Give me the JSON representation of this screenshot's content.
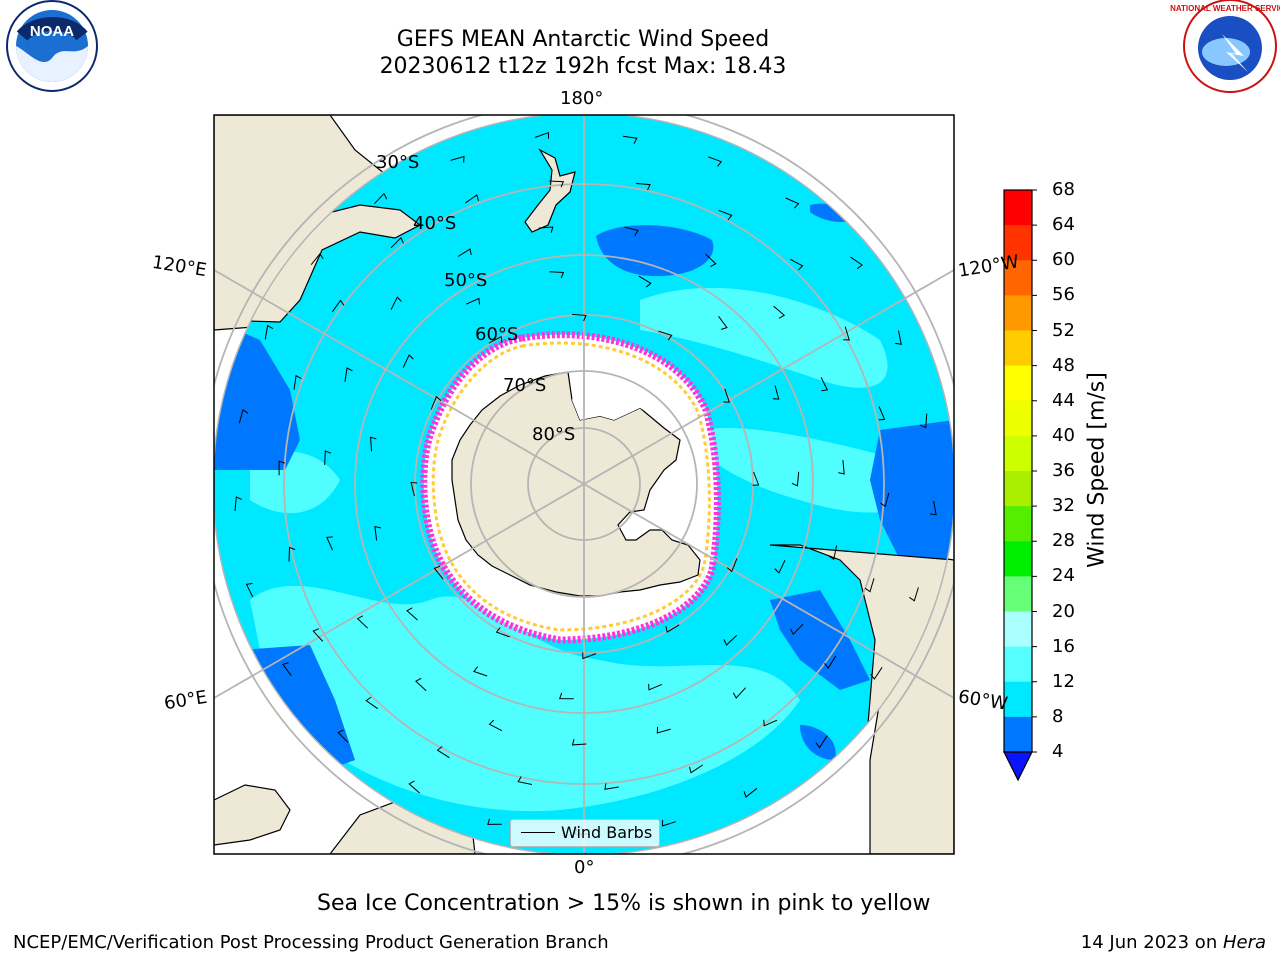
{
  "title": {
    "line1": "GEFS MEAN Antarctic Wind Speed",
    "line2": "20230612 t12z 192h fcst   Max: 18.43"
  },
  "logos": {
    "left": {
      "name": "noaa-logo",
      "text": "NOAA"
    },
    "right": {
      "name": "nws-logo",
      "text": "NATIONAL WEATHER SERVICE"
    }
  },
  "map": {
    "projection": "south-polar-stereographic",
    "longitude_labels": {
      "top": "180°",
      "bottom": "0°",
      "upper_left": "120°E",
      "upper_right": "120°W",
      "lower_left": "60°E",
      "lower_right": "60°W"
    },
    "latitude_labels": [
      "30°S",
      "40°S",
      "50°S",
      "60°S",
      "70°S",
      "80°S"
    ],
    "colors": {
      "land": "#ede9d6",
      "ocean_low": "#0077ff",
      "ocean_mid": "#00e8ff",
      "ocean_high": "#55ffff",
      "sea_ice": "#ffffff",
      "ice_edge_pink": "#ff33dd",
      "ice_edge_yellow": "#ffcc33",
      "gridline": "#b5b5b5"
    },
    "legend_label": "Wind Barbs"
  },
  "colorbar": {
    "label": "Wind Speed [m/s]",
    "ticks": [
      "4",
      "8",
      "12",
      "16",
      "20",
      "24",
      "28",
      "32",
      "36",
      "40",
      "44",
      "48",
      "52",
      "56",
      "60",
      "64",
      "68"
    ],
    "colors": [
      "#0a14ff",
      "#0077ff",
      "#00e8ff",
      "#55ffff",
      "#aaffff",
      "#66ff77",
      "#00ee00",
      "#55ee00",
      "#aaee00",
      "#ccff00",
      "#eeff00",
      "#ffff00",
      "#ffcc00",
      "#ff9900",
      "#ff6600",
      "#ff3300",
      "#ff0000"
    ]
  },
  "caption": "Sea Ice Concentration > 15% is shown in pink to yellow",
  "footer": {
    "left": "NCEP/EMC/Verification Post Processing Product Generation Branch",
    "right_prefix": "14 Jun 2023 on ",
    "right_host": "Hera"
  }
}
